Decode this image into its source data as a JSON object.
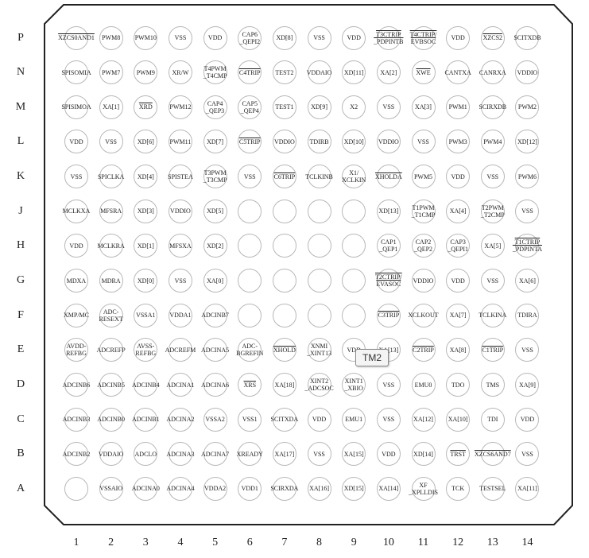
{
  "rows": [
    "P",
    "N",
    "M",
    "L",
    "K",
    "J",
    "H",
    "G",
    "F",
    "E",
    "D",
    "C",
    "B",
    "A"
  ],
  "columns": [
    "1",
    "2",
    "3",
    "4",
    "5",
    "6",
    "7",
    "8",
    "9",
    "10",
    "11",
    "12",
    "13",
    "14"
  ],
  "pins": [
    [
      "XZCS0AND1",
      "PWM8",
      "PWM10",
      "VSS",
      "VDD",
      "CAP6\n_QEPI2",
      "XD[8]",
      "VSS",
      "VDD",
      "T3CTRIP\n_PDPINTB",
      "T4CTRIP/\nEVBSOC",
      "VDD",
      "XZCS2",
      "SCITXDB"
    ],
    [
      "SPISOMIA",
      "PWM7",
      "PWM9",
      "XR/W",
      "T4PWM\n_T4CMP",
      "C4TRIP",
      "TEST2",
      "VDDAIO",
      "XD[11]",
      "XA[2]",
      "XWE",
      "CANTXA",
      "CANRXA",
      "VDDIO"
    ],
    [
      "SPISIMOA",
      "XA[1]",
      "XRD",
      "PWM12",
      "CAP4\n_QEP3",
      "CAP5\n_QEP4",
      "TEST1",
      "XD[9]",
      "X2",
      "VSS",
      "XA[3]",
      "PWM1",
      "SCIRXDB",
      "PWM2"
    ],
    [
      "VDD",
      "VSS",
      "XD[6]",
      "PWM11",
      "XD[7]",
      "C5TRIP",
      "VDDIO",
      "TDIRB",
      "XD[10]",
      "VDDIO",
      "VSS",
      "PWM3",
      "PWM4",
      "XD[12]"
    ],
    [
      "VSS",
      "SPICLKA",
      "XD[4]",
      "SPISTEA",
      "T3PWM\n_T3CMP",
      "VSS",
      "C6TRIP",
      "TCLKINB",
      "X1/\nXCLKIN",
      "XHOLDA",
      "PWM5",
      "VDD",
      "VSS",
      "PWM6"
    ],
    [
      "MCLKXA",
      "MFSRA",
      "XD[3]",
      "VDDIO",
      "XD[5]",
      "",
      "",
      "",
      "",
      "XD[13]",
      "T1PWM\n_T1CMP",
      "XA[4]",
      "T2PWM\n_T2CMP",
      "VSS"
    ],
    [
      "VDD",
      "MCLKRA",
      "XD[1]",
      "MFSXA",
      "XD[2]",
      "",
      "",
      "",
      "",
      "CAP1\n_QEP1",
      "CAP2\n_QEP2",
      "CAP3\n_QEPI1",
      "XA[5]",
      "T1CTRIP\n_PDPINTA"
    ],
    [
      "MDXA",
      "MDRA",
      "XD[0]",
      "VSS",
      "XA[0]",
      "",
      "",
      "",
      "",
      "T2CTRIP/\nEVASOC",
      "VDDIO",
      "VDD",
      "VSS",
      "XA[6]"
    ],
    [
      "XMP/MC",
      "ADC-\nRESEXT",
      "VSSA1",
      "VDDA1",
      "ADCINB7",
      "",
      "",
      "",
      "",
      "C3TRIP",
      "XCLKOUT",
      "XA[7]",
      "TCLKINA",
      "TDIRA"
    ],
    [
      "AVDD-\nREFBG",
      "ADCREFP",
      "AVSS-\nREFBG",
      "ADCREFM",
      "ADCINA5",
      "ADC-\nBGREFIN",
      "XHOLD",
      "XNMI\n_XINT13",
      "VDD",
      "XA[13]",
      "C2TRIP",
      "XA[8]",
      "C1TRIP",
      "VSS"
    ],
    [
      "ADCINB6",
      "ADCINB5",
      "ADCINB4",
      "ADCINA1",
      "ADCINA6",
      "XRS",
      "XA[18]",
      "XINT2\n_ADCSOC",
      "XINT1\n_XBIO",
      "VSS",
      "EMU0",
      "TDO",
      "TMS",
      "XA[9]"
    ],
    [
      "ADCINB3",
      "ADCINB0",
      "ADCINB1",
      "ADCINA2",
      "VSSA2",
      "VSS1",
      "SCITXDA",
      "VDD",
      "EMU1",
      "VSS",
      "XA[12]",
      "XA[10]",
      "TDI",
      "VDD"
    ],
    [
      "ADCINB2",
      "VDDAIO",
      "ADCLO",
      "ADCINA3",
      "ADCINA7",
      "XREADY",
      "XA[17]",
      "VSS",
      "XA[15]",
      "VDD",
      "XD[14]",
      "TRST",
      "XZCS6AND7",
      "VSS"
    ],
    [
      "",
      "VSSAIO",
      "ADCINA0",
      "ADCINA4",
      "VDDA2",
      "VDD1",
      "SCIRXDA",
      "XA[16]",
      "XD[15]",
      "XA[14]",
      "XF\n_XPLLDIS",
      "TCK",
      "TESTSEL",
      "XA[11]"
    ]
  ],
  "overlined": [
    "XZCS0AND1",
    "XZCS2",
    "XZCS6AND7",
    "T3CTRIP\n_PDPINTB",
    "T4CTRIP/\nEVBSOC",
    "C4TRIP",
    "C5TRIP",
    "C6TRIP",
    "XWE",
    "XRD",
    "XHOLDA",
    "XHOLD",
    "T1CTRIP\n_PDPINTA",
    "T2CTRIP/\nEVASOC",
    "C3TRIP",
    "C2TRIP",
    "C1TRIP",
    "XRS",
    "TRST"
  ],
  "tooltip": "TM2"
}
